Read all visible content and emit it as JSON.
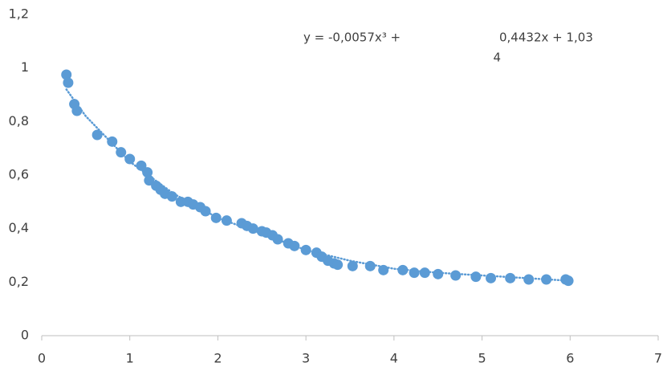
{
  "chart_data": {
    "type": "scatter",
    "x": [
      0.28,
      0.3,
      0.37,
      0.4,
      0.63,
      0.8,
      0.9,
      1.0,
      1.13,
      1.2,
      1.22,
      1.3,
      1.35,
      1.4,
      1.48,
      1.58,
      1.66,
      1.72,
      1.8,
      1.86,
      1.98,
      2.1,
      2.27,
      2.33,
      2.4,
      2.5,
      2.55,
      2.62,
      2.68,
      2.8,
      2.87,
      3.0,
      3.12,
      3.18,
      3.25,
      3.32,
      3.36,
      3.53,
      3.73,
      3.88,
      4.1,
      4.23,
      4.35,
      4.5,
      4.7,
      4.93,
      5.1,
      5.32,
      5.53,
      5.73,
      5.95,
      5.98
    ],
    "values": [
      0.975,
      0.945,
      0.865,
      0.84,
      0.75,
      0.725,
      0.685,
      0.66,
      0.635,
      0.61,
      0.58,
      0.56,
      0.545,
      0.53,
      0.52,
      0.5,
      0.5,
      0.49,
      0.48,
      0.465,
      0.44,
      0.43,
      0.42,
      0.41,
      0.4,
      0.39,
      0.385,
      0.375,
      0.36,
      0.345,
      0.335,
      0.32,
      0.31,
      0.295,
      0.28,
      0.27,
      0.265,
      0.26,
      0.26,
      0.245,
      0.245,
      0.235,
      0.235,
      0.23,
      0.225,
      0.22,
      0.215,
      0.215,
      0.21,
      0.21,
      0.21,
      0.205
    ],
    "color": "#5b9bd5",
    "trendline": {
      "x": [
        0.28,
        0.5,
        1,
        1.5,
        2,
        2.5,
        3,
        3.5,
        4,
        4.5,
        5,
        5.5,
        6
      ],
      "values": [
        0.92,
        0.82,
        0.65,
        0.53,
        0.44,
        0.38,
        0.32,
        0.28,
        0.25,
        0.235,
        0.225,
        0.215,
        0.205
      ],
      "color": "#5b9bd5"
    },
    "annotations": [
      "y = -0,0057x³ +",
      "0,4432x + 1,03",
      "4"
    ],
    "xlim": [
      0,
      7
    ],
    "xticks": [
      0,
      1,
      2,
      3,
      4,
      5,
      6,
      7
    ],
    "ylim": [
      0,
      1.2
    ],
    "yticks": [
      0,
      {
        "value": 0.2,
        "label": "0,2"
      },
      {
        "value": 0.4,
        "label": "0,4"
      },
      {
        "value": 0.6,
        "label": "0,6"
      },
      {
        "value": 0.8,
        "label": "0,8"
      },
      1,
      {
        "value": 1.2,
        "label": "1,2"
      }
    ],
    "grid": false
  }
}
